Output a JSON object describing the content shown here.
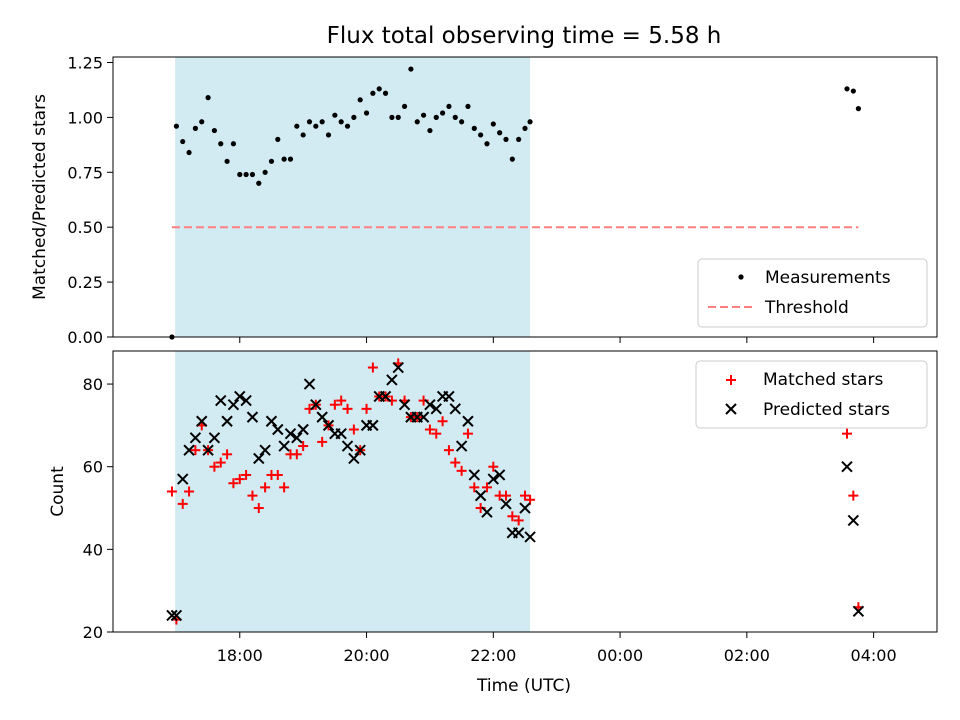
{
  "figure": {
    "title": "Flux total observing time = 5.58 h",
    "xlabel": "Time (UTC)",
    "x_tick_labels": [
      "18:00",
      "20:00",
      "22:00",
      "00:00",
      "02:00",
      "04:00"
    ]
  },
  "chart_data": [
    {
      "type": "scatter",
      "panel": "top",
      "ylabel": "Matched/Predicted stars",
      "xlabel": "Time (UTC)",
      "x_unit": "hours since 16:00 UTC",
      "xlim": [
        0.0,
        13.0
      ],
      "ylim": [
        0.0,
        1.275
      ],
      "y_tick_labels": [
        "0.00",
        "0.25",
        "0.50",
        "0.75",
        "1.00",
        "1.25"
      ],
      "shaded_span": {
        "x0": 0.98,
        "x1": 6.58,
        "color": "#add8e6"
      },
      "legend_position": "lower right",
      "series": [
        {
          "name": "Measurements",
          "marker": "dot",
          "color": "#000000",
          "x": [
            0.93,
            1.0,
            1.1,
            1.2,
            1.3,
            1.4,
            1.5,
            1.6,
            1.7,
            1.8,
            1.9,
            2.0,
            2.1,
            2.2,
            2.3,
            2.4,
            2.5,
            2.6,
            2.7,
            2.8,
            2.9,
            3.0,
            3.1,
            3.2,
            3.3,
            3.4,
            3.5,
            3.6,
            3.7,
            3.8,
            3.9,
            4.0,
            4.1,
            4.2,
            4.3,
            4.4,
            4.5,
            4.6,
            4.7,
            4.8,
            4.9,
            5.0,
            5.1,
            5.2,
            5.3,
            5.4,
            5.5,
            5.6,
            5.7,
            5.8,
            5.9,
            6.0,
            6.1,
            6.2,
            6.3,
            6.4,
            6.5,
            6.58,
            11.58,
            11.68,
            11.76
          ],
          "y": [
            0.0,
            0.96,
            0.89,
            0.84,
            0.95,
            0.98,
            1.09,
            0.94,
            0.88,
            0.8,
            0.88,
            0.74,
            0.74,
            0.74,
            0.7,
            0.75,
            0.8,
            0.9,
            0.81,
            0.81,
            0.96,
            0.92,
            0.98,
            0.96,
            0.98,
            0.92,
            1.01,
            0.98,
            0.96,
            1.0,
            1.08,
            1.02,
            1.11,
            1.13,
            1.11,
            1.0,
            1.0,
            1.05,
            1.22,
            0.98,
            1.01,
            0.94,
            1.0,
            1.02,
            1.05,
            1.0,
            0.98,
            1.05,
            0.95,
            0.92,
            0.88,
            0.97,
            0.93,
            0.9,
            0.81,
            0.9,
            0.95,
            0.98,
            1.13,
            1.12,
            1.04
          ]
        },
        {
          "name": "Threshold",
          "line": "dashed",
          "color": "#ff7f7f",
          "x": [
            0.93,
            11.76
          ],
          "y": [
            0.5,
            0.5
          ]
        }
      ]
    },
    {
      "type": "scatter",
      "panel": "bottom",
      "ylabel": "Count",
      "xlabel": "Time (UTC)",
      "x_unit": "hours since 16:00 UTC",
      "xlim": [
        0.0,
        13.0
      ],
      "ylim": [
        20,
        88
      ],
      "y_tick_labels": [
        "20",
        "40",
        "60",
        "80"
      ],
      "shaded_span": {
        "x0": 0.98,
        "x1": 6.58,
        "color": "#add8e6"
      },
      "legend_position": "upper right",
      "series": [
        {
          "name": "Matched stars",
          "marker": "plus",
          "color": "#ff0000",
          "x": [
            0.93,
            1.0,
            1.1,
            1.2,
            1.3,
            1.4,
            1.5,
            1.6,
            1.7,
            1.8,
            1.9,
            2.0,
            2.1,
            2.2,
            2.3,
            2.4,
            2.5,
            2.6,
            2.7,
            2.8,
            2.9,
            3.0,
            3.1,
            3.2,
            3.3,
            3.4,
            3.5,
            3.6,
            3.7,
            3.8,
            3.9,
            4.0,
            4.1,
            4.2,
            4.3,
            4.4,
            4.5,
            4.6,
            4.7,
            4.8,
            4.9,
            5.0,
            5.1,
            5.2,
            5.3,
            5.4,
            5.5,
            5.6,
            5.7,
            5.8,
            5.9,
            6.0,
            6.1,
            6.2,
            6.3,
            6.4,
            6.5,
            6.58,
            11.58,
            11.68,
            11.76
          ],
          "y": [
            54,
            23,
            51,
            54,
            64,
            70,
            64,
            60,
            61,
            63,
            56,
            57,
            58,
            53,
            50,
            55,
            58,
            58,
            55,
            63,
            63,
            65,
            74,
            75,
            66,
            70,
            75,
            76,
            74,
            69,
            64,
            74,
            84,
            77,
            77,
            76,
            85,
            76,
            72,
            72,
            76,
            69,
            68,
            71,
            64,
            61,
            59,
            68,
            55,
            50,
            55,
            60,
            53,
            53,
            48,
            47,
            53,
            52,
            68,
            53,
            26
          ]
        },
        {
          "name": "Predicted stars",
          "marker": "x",
          "color": "#000000",
          "x": [
            0.93,
            1.0,
            1.1,
            1.2,
            1.3,
            1.4,
            1.5,
            1.6,
            1.7,
            1.8,
            1.9,
            2.0,
            2.1,
            2.2,
            2.3,
            2.4,
            2.5,
            2.6,
            2.7,
            2.8,
            2.9,
            3.0,
            3.1,
            3.2,
            3.3,
            3.4,
            3.5,
            3.6,
            3.7,
            3.8,
            3.9,
            4.0,
            4.1,
            4.2,
            4.3,
            4.4,
            4.5,
            4.6,
            4.7,
            4.8,
            4.9,
            5.0,
            5.1,
            5.2,
            5.3,
            5.4,
            5.5,
            5.6,
            5.7,
            5.8,
            5.9,
            6.0,
            6.1,
            6.2,
            6.3,
            6.4,
            6.5,
            6.58,
            11.58,
            11.68,
            11.76
          ],
          "y": [
            24,
            24,
            57,
            64,
            67,
            71,
            64,
            67,
            76,
            71,
            75,
            77,
            76,
            72,
            62,
            64,
            71,
            69,
            65,
            68,
            67,
            69,
            80,
            75,
            72,
            70,
            68,
            68,
            65,
            62,
            64,
            70,
            70,
            77,
            77,
            81,
            84,
            75,
            72,
            72,
            72,
            75,
            74,
            77,
            77,
            74,
            65,
            71,
            58,
            53,
            49,
            57,
            58,
            51,
            44,
            44,
            50,
            43,
            60,
            47,
            25
          ]
        }
      ]
    }
  ]
}
